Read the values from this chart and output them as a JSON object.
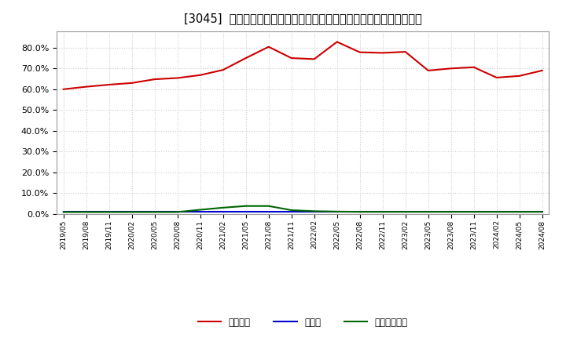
{
  "title": "[3045]  自己資本、のれん、繰延税金資産の総資産に対する比率の推移",
  "legend_labels": [
    "自己資本",
    "のれん",
    "繰延税金資産"
  ],
  "line_colors": [
    "#cc0000",
    "#0000cc",
    "#006600"
  ],
  "x_labels": [
    "2019/05",
    "2019/08",
    "2019/11",
    "2020/02",
    "2020/05",
    "2020/08",
    "2020/11",
    "2021/02",
    "2021/05",
    "2021/08",
    "2021/11",
    "2022/02",
    "2022/05",
    "2022/08",
    "2022/11",
    "2023/02",
    "2023/05",
    "2023/08",
    "2023/11",
    "2024/02",
    "2024/05",
    "2024/08"
  ],
  "jikoshihon": [
    0.6,
    0.612,
    0.622,
    0.63,
    0.648,
    0.654,
    0.668,
    0.693,
    0.75,
    0.804,
    0.75,
    0.745,
    0.828,
    0.778,
    0.775,
    0.78,
    0.69,
    0.7,
    0.706,
    0.656,
    0.664,
    0.69
  ],
  "noren": [
    0.009,
    0.009,
    0.009,
    0.009,
    0.009,
    0.009,
    0.009,
    0.009,
    0.009,
    0.009,
    0.009,
    0.009,
    0.009,
    0.009,
    0.009,
    0.009,
    0.009,
    0.009,
    0.009,
    0.009,
    0.009,
    0.009
  ],
  "kunobezeikinsisan": [
    0.009,
    0.009,
    0.009,
    0.009,
    0.009,
    0.009,
    0.02,
    0.03,
    0.038,
    0.038,
    0.018,
    0.013,
    0.011,
    0.01,
    0.01,
    0.01,
    0.01,
    0.01,
    0.01,
    0.01,
    0.01,
    0.01
  ],
  "ylim": [
    0.0,
    0.88
  ],
  "yticks": [
    0.0,
    0.1,
    0.2,
    0.3,
    0.4,
    0.5,
    0.6,
    0.7,
    0.8
  ],
  "background_color": "#ffffff",
  "plot_bg_color": "#ffffff",
  "grid_color": "#cccccc",
  "title_fontsize": 10.5
}
